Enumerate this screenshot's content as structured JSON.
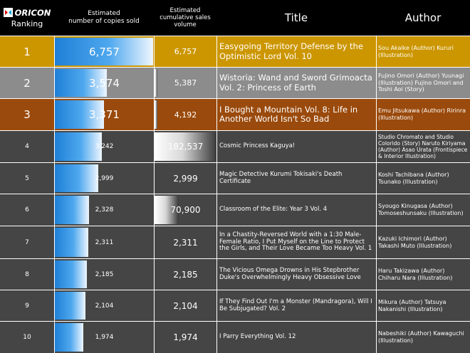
{
  "header": {
    "logo_text": "ORICON",
    "ranking": "Ranking",
    "sold_line1": "Estimated",
    "sold_line2": "number of copies sold",
    "cum_line1": "Estimated",
    "cum_line2": "cumulative sales",
    "cum_line3": "volume",
    "title": "Title",
    "author": "Author"
  },
  "colors": {
    "gold": "#cc9600",
    "silver": "#8c8c8c",
    "bronze": "#9a4a0c",
    "row_dark": "#454545",
    "header_bg": "#000000",
    "bar_blue": "#1e7fd6"
  },
  "chart_data": {
    "type": "table",
    "columns": [
      "Ranking",
      "Estimated number of copies sold",
      "Estimated cumulative sales volume",
      "Title",
      "Author"
    ],
    "sold_max": 6757,
    "cum_max": 182537,
    "rows": [
      {
        "rank": "1",
        "sold": 6757,
        "sold_label": "6,757",
        "cum": 6757,
        "cum_label": "6,757",
        "title": "Easygoing Territory Defense by the Optimistic Lord Vol. 10",
        "author": "Sou Akaike (Author) Kururi (Illustration)",
        "style": "gold"
      },
      {
        "rank": "2",
        "sold": 3574,
        "sold_label": "3,574",
        "cum": 5387,
        "cum_label": "5,387",
        "title": "Wistoria: Wand and Sword Grimoacta Vol. 2: Princess of Earth",
        "author": "Fujino Omori (Author) Yuunagi (Illustration) Fujino Omori and Toshi Aoi (Story)",
        "style": "silver"
      },
      {
        "rank": "3",
        "sold": 3371,
        "sold_label": "3,371",
        "cum": 4192,
        "cum_label": "4,192",
        "title": "I Bought a Mountain Vol. 8: Life in Another World Isn't So Bad",
        "author": "Emu Jitsukawa (Author) Ririnra (Illustration)",
        "style": "bronze"
      },
      {
        "rank": "4",
        "sold": 3242,
        "sold_label": "3,242",
        "cum": 182537,
        "cum_label": "182,537",
        "title": "Cosmic Princess Kaguya!",
        "author": "Studio Chromato and Studio Colorido (Story) Naruto Kiriyama (Author) Asao Urata (Frontispiece & Interior Illustration)",
        "style": "dark"
      },
      {
        "rank": "5",
        "sold": 2999,
        "sold_label": "2,999",
        "cum": 2999,
        "cum_label": "2,999",
        "title": "Magic Detective Kurumi Tokisaki's Death Certificate",
        "author": "Koshi Tachibana (Author) Tsunako (Illustration)",
        "style": "dark"
      },
      {
        "rank": "6",
        "sold": 2328,
        "sold_label": "2,328",
        "cum": 70900,
        "cum_label": "70,900",
        "title": "Classroom of the Elite: Year 3 Vol. 4",
        "author": "Syougo Kinugasa (Author) Tomoseshunsaku (Illustration)",
        "style": "dark"
      },
      {
        "rank": "7",
        "sold": 2311,
        "sold_label": "2,311",
        "cum": 2311,
        "cum_label": "2,311",
        "title": "In a Chastity-Reversed World with a 1:30 Male-Female Ratio, I Put Myself on the Line to Protect the Girls, and Their Love Became Too Heavy Vol. 1",
        "author": "Kazuki Ichimori (Author) Takashi Muto (Illustration)",
        "style": "dark"
      },
      {
        "rank": "8",
        "sold": 2185,
        "sold_label": "2,185",
        "cum": 2185,
        "cum_label": "2,185",
        "title": "The Vicious Omega Drowns in His Stepbrother Duke's Overwhelmingly Heavy Obsessive Love",
        "author": "Haru Takizawa (Author) Chiharu Nara (Illustration)",
        "style": "dark"
      },
      {
        "rank": "9",
        "sold": 2104,
        "sold_label": "2,104",
        "cum": 2104,
        "cum_label": "2,104",
        "title": "If They Find Out I'm a Monster (Mandragora), Will I Be Subjugated? Vol. 2",
        "author": "Mikura (Author) Tatsuya Nakanishi (Illustration)",
        "style": "dark"
      },
      {
        "rank": "10",
        "sold": 1974,
        "sold_label": "1,974",
        "cum": 1974,
        "cum_label": "1,974",
        "title": "I Parry Everything Vol. 12",
        "author": "Nabeshiki (Author) Kawaguchi (Illustration)",
        "style": "dark"
      }
    ]
  }
}
